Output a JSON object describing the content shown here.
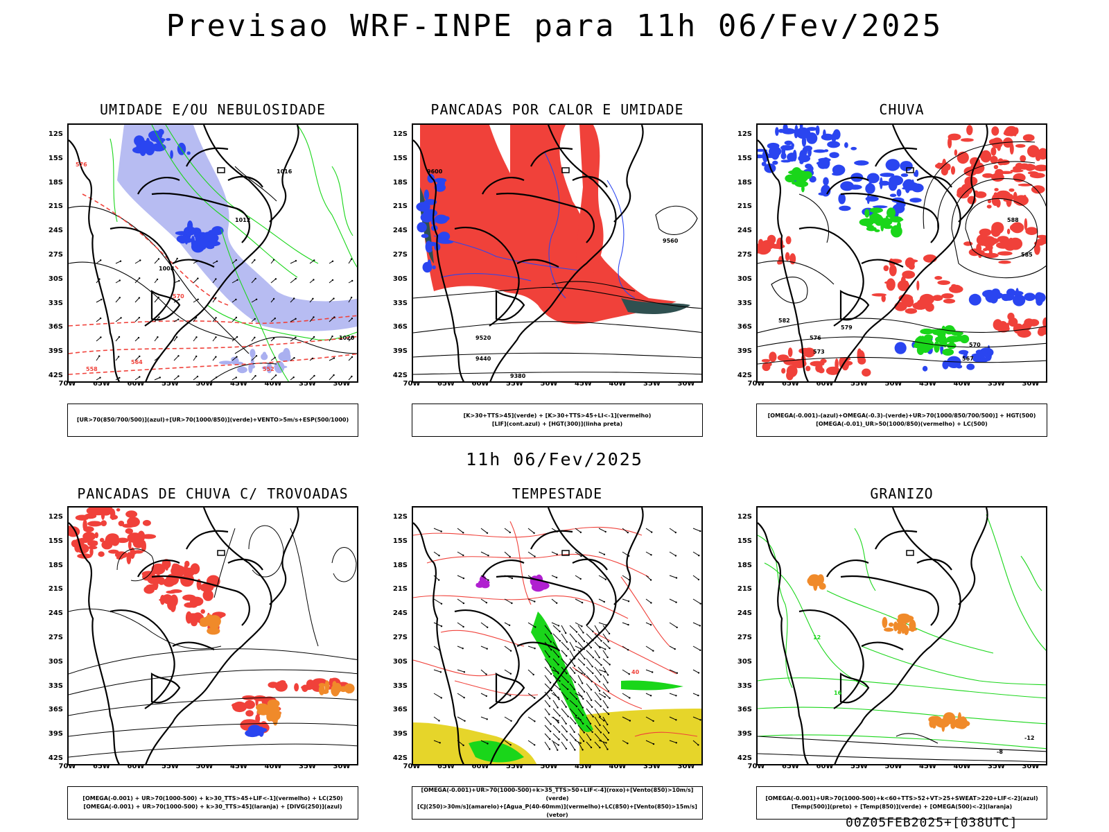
{
  "title": "Previsao WRF-INPE  para 11h 06/Fev/2025",
  "subtitle": "11h 06/Fev/2025",
  "footer": "00Z05FEB2025+[038UTC]",
  "lat_ticks": [
    "12S",
    "15S",
    "18S",
    "21S",
    "24S",
    "27S",
    "30S",
    "33S",
    "36S",
    "39S",
    "42S"
  ],
  "lon_ticks": [
    "70W",
    "65W",
    "60W",
    "55W",
    "50W",
    "45W",
    "40W",
    "35W",
    "30W"
  ],
  "colors": {
    "red": "#f0413a",
    "blue": "#2a45f0",
    "green": "#1ad61a",
    "lavender": "#aab0f0",
    "darkgreen": "#2f5050",
    "yellow": "#e6d52a",
    "orange": "#f08a2a",
    "purple": "#b020d0"
  },
  "panels": [
    {
      "title": "UMIDADE E/OU NEBULOSIDADE",
      "legend": [
        "[UR>70(850/700/500)](azul)+[UR>70(1000/850)](verde)+VENTO>5m/s+ESP(500/1000)"
      ],
      "labels": [
        "1012",
        "1016",
        "1008",
        "1020",
        "576",
        "570",
        "564",
        "558",
        "552"
      ]
    },
    {
      "title": "PANCADAS POR CALOR E UMIDADE",
      "legend": [
        "[K>30+TTS>45](verde) + [K>30+TTS>45+LI<-1](vermelho)",
        "[LIF](cont.azul) + [HGT(300)](linha preta)"
      ],
      "labels": [
        "9600",
        "9560",
        "9520",
        "9440",
        "9380"
      ]
    },
    {
      "title": "CHUVA",
      "legend": [
        "[OMEGA(-0.001)-(azul)+OMEGA(-0.3)-(verde)+UR>70(1000/850/700/500)] + HGT(500)",
        "[OMEGA(-0.01)_UR>50(1000/850)(vermelho) + LC(500)"
      ],
      "labels": [
        "588",
        "585",
        "582",
        "579",
        "576",
        "573",
        "570",
        "567"
      ]
    },
    {
      "title": "PANCADAS DE CHUVA C/ TROVOADAS",
      "legend": [
        "[OMEGA(-0.001) + UR>70(1000-500) + k>30_TTS>45+LIF<-1](vermelho) + LC(250)",
        "[OMEGA(-0.001) + UR>70(1000-500) + k>30_TTS>45](laranja) + [DIVG(250)](azul)"
      ],
      "labels": []
    },
    {
      "title": "TEMPESTADE",
      "legend": [
        "[OMEGA(-0.001)+UR>70(1000-500)+k>35_TTS>50+LIF<-4](roxo)+[Vento(850)>10m/s](verde)",
        "[CJ(250)>30m/s](amarelo)+[Agua_P(40-60mm)](vermelho)+LC(850)+[Vento(850)>15m/s](vetor)"
      ],
      "labels": [
        "40"
      ]
    },
    {
      "title": "GRANIZO",
      "legend": [
        "[OMEGA(-0.001)+UR>70(1000-500)+k<60+TTS>52+VT>25+SWEAT>220+LIF<-2](azul)",
        "[Temp(500)](preto) + [Temp(850)](verde) + [OMEGA(500)<-2](laranja)"
      ],
      "labels": [
        "-12",
        "-8",
        "12",
        "16"
      ]
    }
  ]
}
